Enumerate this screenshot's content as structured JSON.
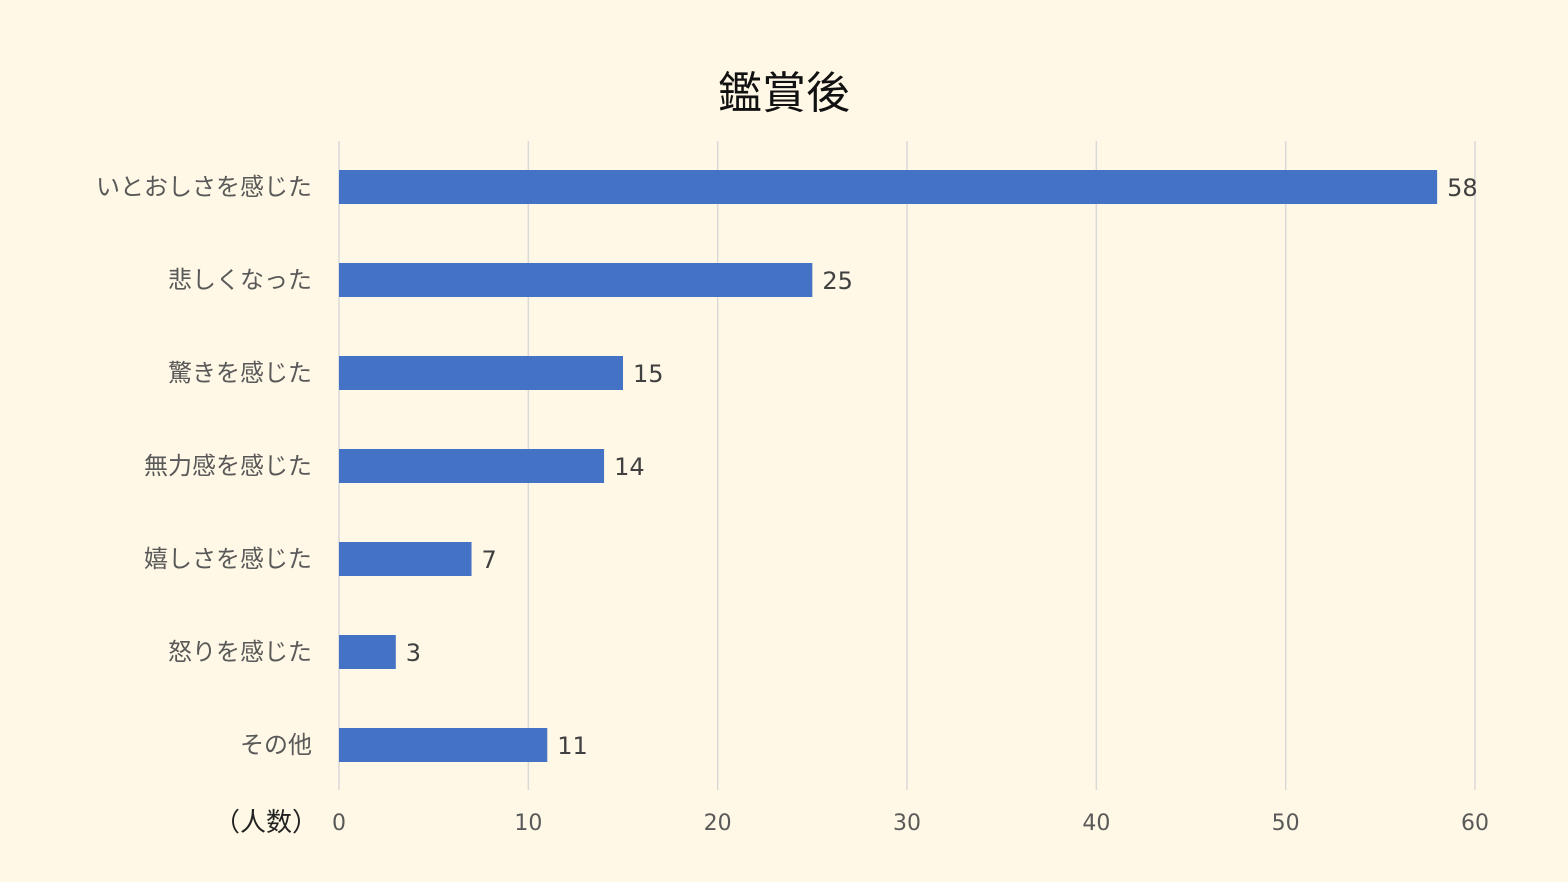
{
  "chart_data": {
    "type": "bar",
    "orientation": "horizontal",
    "title": "鑑賞後",
    "xlabel": "（人数）",
    "ylabel": "",
    "categories": [
      "いとおしさを感じた",
      "悲しくなった",
      "驚きを感じた",
      "無力感を感じた",
      "嬉しさを感じた",
      "怒りを感じた",
      "その他"
    ],
    "values": [
      58,
      25,
      15,
      14,
      7,
      3,
      11
    ],
    "xlim": [
      0,
      60
    ],
    "xticks": [
      "0",
      "10",
      "20",
      "30",
      "40",
      "50",
      "60"
    ],
    "grid": "vertical",
    "legend": "none",
    "bar_color": "#4472c4"
  }
}
